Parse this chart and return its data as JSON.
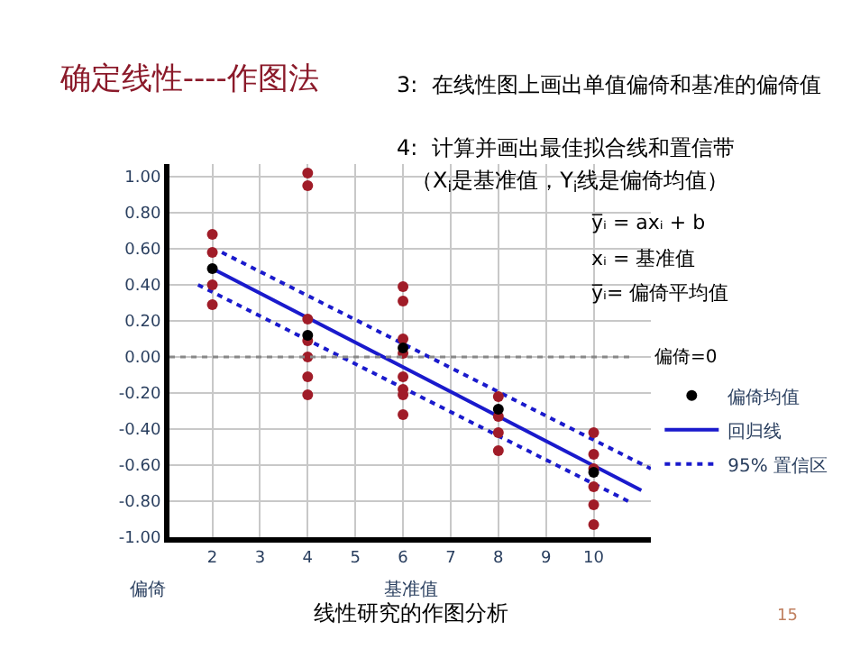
{
  "chart_data": {
    "type": "scatter",
    "title": "确定线性----作图法",
    "xlabel": "基准值",
    "ylabel": "偏倚",
    "xlim": [
      1.1,
      11.2
    ],
    "xticks": [
      2,
      3,
      4,
      5,
      6,
      7,
      8,
      9,
      10
    ],
    "ylim": [
      -1.0,
      1.07
    ],
    "yticks": [
      {
        "value": 1.0,
        "label": "1.00"
      },
      {
        "value": 0.8,
        "label": "0.80"
      },
      {
        "value": 0.6,
        "label": "0.60"
      },
      {
        "value": 0.4,
        "label": "0.40"
      },
      {
        "value": 0.2,
        "label": "0.20"
      },
      {
        "value": 0.0,
        "label": "0.00"
      },
      {
        "value": -0.2,
        "label": "-0.20"
      },
      {
        "value": -0.4,
        "label": "-0.40"
      },
      {
        "value": -0.6,
        "label": "-0.60"
      },
      {
        "value": -0.8,
        "label": "-0.80"
      },
      {
        "value": -1.0,
        "label": "-1.00"
      }
    ],
    "grid": true,
    "legend": "right",
    "marker": "circle",
    "series": [
      {
        "color": "#a01c28",
        "x": [
          2,
          2,
          2,
          2,
          4,
          4,
          4,
          4,
          4,
          4,
          4,
          6,
          6,
          6,
          6,
          6,
          6,
          6,
          6,
          8,
          8,
          8,
          8,
          10,
          10,
          10,
          10,
          10,
          10
        ],
        "values": [
          0.68,
          0.58,
          0.4,
          0.29,
          1.02,
          0.95,
          0.21,
          0.09,
          0.0,
          -0.11,
          -0.21,
          0.39,
          0.31,
          0.1,
          0.02,
          -0.11,
          -0.18,
          -0.21,
          -0.32,
          -0.22,
          -0.33,
          -0.42,
          -0.52,
          -0.42,
          -0.54,
          -0.62,
          -0.72,
          -0.82,
          -0.93
        ]
      },
      {
        "name": "偏倚均值",
        "color": "#000000",
        "x": [
          2,
          4,
          6,
          8,
          10
        ],
        "values": [
          0.49,
          0.12,
          0.05,
          -0.29,
          -0.64
        ]
      },
      {
        "type": "line",
        "name": "回归线",
        "color": "#1a1acc",
        "line_style": "solid",
        "marker": "none",
        "x": [
          2,
          11
        ],
        "values": [
          0.49,
          -0.74
        ]
      },
      {
        "type": "line",
        "name": "95% 置信区",
        "color": "#1a1acc",
        "line_style": "dotted",
        "marker": "none",
        "x": [
          1.7,
          10.8
        ],
        "values": [
          0.4,
          -0.81
        ]
      },
      {
        "type": "line",
        "color": "#1a1acc",
        "line_style": "dotted",
        "marker": "none",
        "x": [
          2.2,
          11.2
        ],
        "values": [
          0.58,
          -0.62
        ]
      }
    ],
    "ref_lines": [
      {
        "axis": "y",
        "value": 0,
        "label": "偏倚=0",
        "color": "#888888",
        "line_style": "dotted"
      }
    ],
    "annotations": [
      "3:  在线性图上画出单值偏倚和基准的偏倚值",
      "4:  计算并画出最佳拟合线和置信带",
      "（X$_{i}$是基准值，Y$_{i}$线是偏倚均值）",
      "y̅ᵢ = axᵢ + b",
      "xᵢ = 基准值",
      "y̅ᵢ= 偏倚平均值",
      "线性研究的作图分析",
      "15"
    ]
  }
}
